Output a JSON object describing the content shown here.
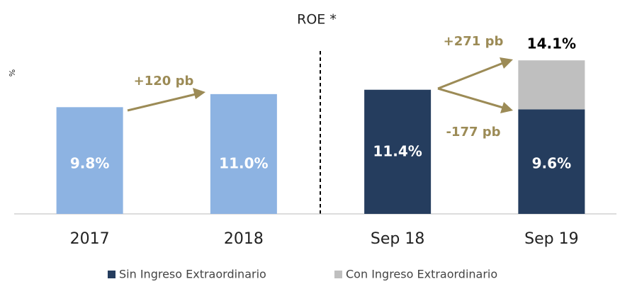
{
  "chart_data": {
    "type": "stacked_bar",
    "title": "ROE *",
    "y_label": "%",
    "categories": [
      "2017",
      "2018",
      "Sep 18",
      "Sep 19"
    ],
    "series": [
      {
        "name": "Sin Ingreso Extraordinario",
        "color": "#253d5e",
        "colors": [
          "#8db3e2",
          "#8db3e2",
          "#253d5e",
          "#253d5e"
        ],
        "values": [
          9.8,
          11.0,
          11.4,
          9.6
        ],
        "value_labels": [
          "9.8%",
          "11.0%",
          "11.4%",
          "9.6%"
        ]
      },
      {
        "name": "Con Ingreso Extraordinario",
        "color": "#bfbfbf",
        "values": [
          null,
          null,
          null,
          4.5
        ]
      }
    ],
    "total_labels": [
      null,
      null,
      null,
      "14.1%"
    ],
    "annotations": [
      "+120 pb",
      "+271 pb",
      "-177 pb"
    ],
    "ylim": [
      0,
      16
    ]
  }
}
